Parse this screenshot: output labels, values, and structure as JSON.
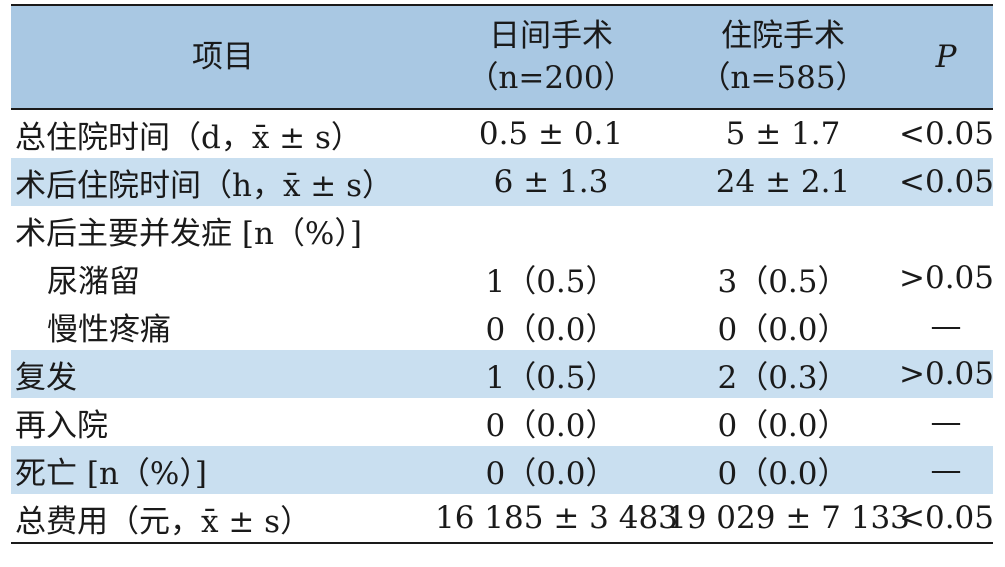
{
  "header": {
    "col1": "项目",
    "col2_line1": "日间手术",
    "col2_line2": "（n=200）",
    "col3_line1": "住院手术",
    "col3_line2": "（n=585）",
    "col4": "P"
  },
  "rows": [
    {
      "label": "总住院时间（d，x̄ ± s）",
      "day": "0.5 ± 0.1",
      "inpatient": "5 ± 1.7",
      "p": "<0.05"
    },
    {
      "label": "术后住院时间（h，x̄ ± s）",
      "day": "6 ± 1.3",
      "inpatient": "24 ± 2.1",
      "p": "<0.05"
    },
    {
      "label": "术后主要并发症 [n（%）]",
      "day": "",
      "inpatient": "",
      "p": ""
    },
    {
      "label": "尿潴留",
      "day": "1（0.5）",
      "inpatient": "3（0.5）",
      "p": ">0.05"
    },
    {
      "label": "慢性疼痛",
      "day": "0（0.0）",
      "inpatient": "0（0.0）",
      "p": "—"
    },
    {
      "label": "复发",
      "day": "1（0.5）",
      "inpatient": "2（0.3）",
      "p": ">0.05"
    },
    {
      "label": "再入院",
      "day": "0（0.0）",
      "inpatient": "0（0.0）",
      "p": "—"
    },
    {
      "label": "死亡 [n（%）]",
      "day": "0（0.0）",
      "inpatient": "0（0.0）",
      "p": "—"
    },
    {
      "label": "总费用（元，x̄ ± s）",
      "day": "16 185 ± 3 483",
      "inpatient": "19 029 ± 7 133",
      "p": "<0.05"
    }
  ],
  "colors": {
    "header_bg": "#a9c8e3",
    "shade_bg": "#c9dff0"
  }
}
